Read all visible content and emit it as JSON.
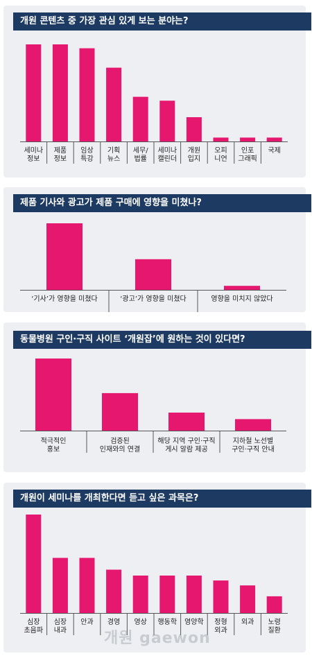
{
  "accent": "#e5176f",
  "title_bg": "#1d3a63",
  "chart_data": [
    {
      "type": "bar",
      "title": "개원 콘텐츠 중 가장 관심 있게 보는 분야는?",
      "categories": [
        "세미나\n정보",
        "제품\n정보",
        "임상\n특강",
        "기획\n뉴스",
        "세무/\n법률",
        "세미나\n캘린더",
        "개원\n입지",
        "오피\n니언",
        "인포\n그래픽",
        "국제"
      ],
      "values": [
        100,
        100,
        96,
        76,
        46,
        42,
        25,
        4,
        4,
        4
      ],
      "ylim": [
        0,
        100
      ],
      "grid": false
    },
    {
      "type": "bar",
      "title": "제품 기사와 광고가 제품 구매에 영향을 미쳤나?",
      "categories": [
        "‘기사’가 영향을 미쳤다",
        "‘광고’가 영향을 미쳤다",
        "영향을 미치지 않았다"
      ],
      "values": [
        100,
        46,
        6
      ],
      "ylim": [
        0,
        100
      ],
      "grid": false
    },
    {
      "type": "bar",
      "title": "동물병원 구인·구직 사이트 ‘개원잡’에 원하는 것이 있다면?",
      "categories": [
        "적극적인\n홍보",
        "검증된\n인재와의 연결",
        "해당 지역 구인·구직\n게시 알람 제공",
        "지하철 노선별\n구인·구직 안내"
      ],
      "values": [
        100,
        52,
        25,
        16
      ],
      "ylim": [
        0,
        100
      ],
      "grid": false
    },
    {
      "type": "bar",
      "title": "개원이 세미나를 개최한다면 듣고 싶은 과목은?",
      "categories": [
        "심장\n초음파",
        "심장\n내과",
        "안과",
        "경영",
        "영상",
        "행동학",
        "영양학",
        "정형\n외과",
        "외과",
        "노령\n질환"
      ],
      "values": [
        100,
        56,
        56,
        44,
        38,
        38,
        38,
        33,
        28,
        17
      ],
      "ylim": [
        0,
        100
      ],
      "grid": false
    }
  ],
  "watermark": "개원 gaewon"
}
